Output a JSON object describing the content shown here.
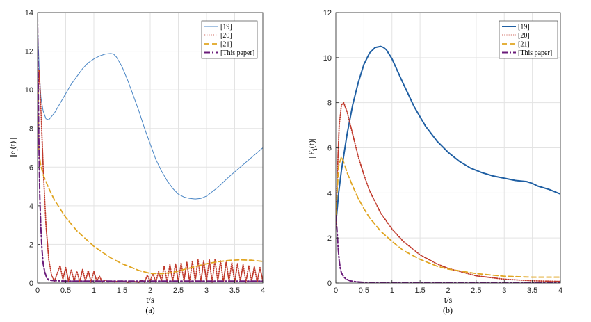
{
  "chart_data": [
    {
      "type": "line",
      "panel": "a",
      "caption": "(a)",
      "xlabel": "t/s",
      "ylabel": "||e_i(t)||",
      "xlim": [
        0,
        4
      ],
      "ylim": [
        0,
        14
      ],
      "xticks": [
        0,
        0.5,
        1,
        1.5,
        2,
        2.5,
        3,
        3.5,
        4
      ],
      "yticks": [
        0,
        2,
        4,
        6,
        8,
        10,
        12,
        14
      ],
      "xtick_labels": [
        "0",
        "0.5",
        "1",
        "1.5",
        "2",
        "2.5",
        "3",
        "3.5",
        "4"
      ],
      "ytick_labels": [
        "0",
        "2",
        "4",
        "6",
        "8",
        "10",
        "12",
        "14"
      ],
      "grid": true,
      "legend_position": "top-right",
      "series": [
        {
          "name": "[19]",
          "color": "#4a86c5",
          "style": "solid",
          "x": [
            0,
            0.03,
            0.06,
            0.1,
            0.15,
            0.2,
            0.3,
            0.4,
            0.5,
            0.6,
            0.7,
            0.8,
            0.9,
            1.0,
            1.1,
            1.2,
            1.3,
            1.35,
            1.4,
            1.5,
            1.6,
            1.7,
            1.8,
            1.9,
            2.0,
            2.1,
            2.2,
            2.3,
            2.4,
            2.5,
            2.6,
            2.7,
            2.8,
            2.9,
            3.0,
            3.2,
            3.4,
            3.6,
            3.8,
            4.0
          ],
          "y": [
            13.5,
            11.0,
            9.6,
            8.9,
            8.5,
            8.45,
            8.8,
            9.3,
            9.8,
            10.3,
            10.7,
            11.1,
            11.4,
            11.6,
            11.75,
            11.85,
            11.88,
            11.85,
            11.7,
            11.2,
            10.5,
            9.7,
            8.9,
            8.0,
            7.2,
            6.4,
            5.8,
            5.3,
            4.9,
            4.6,
            4.45,
            4.38,
            4.35,
            4.38,
            4.5,
            4.95,
            5.5,
            6.0,
            6.5,
            7.0
          ]
        },
        {
          "name": "[20]",
          "color": "#c0392b",
          "style": "dotted",
          "x": [
            0,
            0.03,
            0.06,
            0.1,
            0.15,
            0.2,
            0.25,
            0.3,
            0.35,
            0.4,
            0.45,
            0.5,
            0.55,
            0.6,
            0.65,
            0.7,
            0.75,
            0.8,
            0.85,
            0.9,
            0.95,
            1.0,
            1.05,
            1.1,
            1.15,
            1.2,
            1.25,
            1.3,
            1.35,
            1.4,
            1.5,
            1.6,
            1.7,
            1.8,
            1.85,
            1.9,
            1.95,
            2.0,
            2.05,
            2.1,
            2.15,
            2.2,
            2.25,
            2.3,
            2.35,
            2.4,
            2.45,
            2.5,
            2.55,
            2.6,
            2.65,
            2.7,
            2.75,
            2.8,
            2.85,
            2.9,
            2.95,
            3.0,
            3.05,
            3.1,
            3.15,
            3.2,
            3.25,
            3.3,
            3.35,
            3.4,
            3.45,
            3.5,
            3.55,
            3.6,
            3.65,
            3.7,
            3.75,
            3.8,
            3.85,
            3.9,
            3.95,
            4.0
          ],
          "y": [
            9.5,
            11.0,
            9.0,
            6.0,
            3.0,
            1.2,
            0.4,
            0.1,
            0.5,
            0.9,
            0.2,
            0.8,
            0.1,
            0.7,
            0.1,
            0.6,
            0.05,
            0.7,
            0.1,
            0.65,
            0.05,
            0.6,
            0.1,
            0.35,
            0.05,
            0.15,
            0.05,
            0.1,
            0.05,
            0.08,
            0.1,
            0.05,
            0.08,
            0.05,
            0.15,
            0.05,
            0.4,
            0.1,
            0.5,
            0.05,
            0.6,
            0.1,
            0.9,
            0.05,
            0.95,
            0.1,
            1.0,
            0.05,
            1.05,
            0.1,
            1.1,
            0.05,
            1.15,
            0.1,
            1.2,
            0.05,
            1.15,
            0.1,
            1.2,
            0.05,
            1.2,
            0.1,
            1.15,
            0.05,
            1.1,
            0.1,
            1.05,
            0.05,
            1.0,
            0.1,
            0.95,
            0.05,
            0.9,
            0.1,
            0.85,
            0.05,
            0.8,
            0.1
          ]
        },
        {
          "name": "[21]",
          "color": "#e0a521",
          "style": "dashed",
          "x": [
            0,
            0.02,
            0.05,
            0.1,
            0.2,
            0.3,
            0.5,
            0.7,
            1.0,
            1.3,
            1.5,
            1.8,
            2.0,
            2.2,
            2.4,
            2.6,
            2.8,
            3.0,
            3.2,
            3.4,
            3.6,
            3.8,
            4.0
          ],
          "y": [
            13.5,
            7.0,
            6.2,
            5.6,
            4.9,
            4.3,
            3.4,
            2.7,
            1.9,
            1.3,
            1.0,
            0.65,
            0.5,
            0.48,
            0.55,
            0.7,
            0.85,
            1.0,
            1.1,
            1.17,
            1.2,
            1.18,
            1.12
          ]
        },
        {
          "name": "[This paper]",
          "color": "#6a1b7a",
          "style": "dashdot",
          "x": [
            0,
            0.02,
            0.04,
            0.06,
            0.08,
            0.1,
            0.13,
            0.16,
            0.2,
            0.3,
            0.5,
            1.0,
            2.0,
            3.0,
            4.0
          ],
          "y": [
            13.8,
            8.0,
            4.5,
            2.8,
            1.7,
            1.0,
            0.55,
            0.3,
            0.15,
            0.12,
            0.1,
            0.1,
            0.1,
            0.1,
            0.1
          ]
        }
      ]
    },
    {
      "type": "line",
      "panel": "b",
      "caption": "(b)",
      "xlabel": "t/s",
      "ylabel": "||E_i(t)||",
      "xlim": [
        0,
        4
      ],
      "ylim": [
        0,
        12
      ],
      "xticks": [
        0,
        0.5,
        1,
        1.5,
        2,
        2.5,
        3,
        3.5,
        4
      ],
      "yticks": [
        0,
        2,
        4,
        6,
        8,
        10,
        12
      ],
      "xtick_labels": [
        "0",
        "0.5",
        "1",
        "1.5",
        "2",
        "2.5",
        "3",
        "3.5",
        "4"
      ],
      "ytick_labels": [
        "0",
        "2",
        "4",
        "6",
        "8",
        "10",
        "12"
      ],
      "grid": true,
      "legend_position": "top-right",
      "series": [
        {
          "name": "[19]",
          "color": "#1f5fa3",
          "style": "solid-thick",
          "x": [
            0,
            0.05,
            0.1,
            0.2,
            0.3,
            0.4,
            0.5,
            0.6,
            0.7,
            0.8,
            0.85,
            0.9,
            1.0,
            1.1,
            1.2,
            1.4,
            1.6,
            1.8,
            2.0,
            2.2,
            2.4,
            2.6,
            2.8,
            3.0,
            3.2,
            3.4,
            3.5,
            3.6,
            3.8,
            4.0
          ],
          "y": [
            2.6,
            4.0,
            5.0,
            6.6,
            7.9,
            8.9,
            9.7,
            10.2,
            10.45,
            10.5,
            10.45,
            10.35,
            9.95,
            9.4,
            8.85,
            7.8,
            6.95,
            6.3,
            5.8,
            5.4,
            5.1,
            4.9,
            4.75,
            4.65,
            4.55,
            4.5,
            4.42,
            4.3,
            4.15,
            3.95
          ]
        },
        {
          "name": "[20]",
          "color": "#c0392b",
          "style": "dotted",
          "x": [
            0,
            0.03,
            0.06,
            0.1,
            0.14,
            0.2,
            0.3,
            0.4,
            0.5,
            0.6,
            0.8,
            1.0,
            1.2,
            1.5,
            1.8,
            2.0,
            2.5,
            3.0,
            3.5,
            4.0
          ],
          "y": [
            2.5,
            5.0,
            7.0,
            7.9,
            8.0,
            7.6,
            6.6,
            5.6,
            4.8,
            4.1,
            3.1,
            2.4,
            1.85,
            1.25,
            0.85,
            0.65,
            0.32,
            0.17,
            0.1,
            0.07
          ]
        },
        {
          "name": "[21]",
          "color": "#e0a521",
          "style": "dashed",
          "x": [
            0,
            0.05,
            0.1,
            0.15,
            0.2,
            0.3,
            0.4,
            0.5,
            0.6,
            0.8,
            1.0,
            1.2,
            1.5,
            1.8,
            2.0,
            2.5,
            3.0,
            3.5,
            4.0
          ],
          "y": [
            3.0,
            5.2,
            5.6,
            5.3,
            4.9,
            4.3,
            3.75,
            3.3,
            2.9,
            2.3,
            1.85,
            1.45,
            1.05,
            0.75,
            0.62,
            0.42,
            0.3,
            0.26,
            0.26
          ]
        },
        {
          "name": "[This paper]",
          "color": "#6a1b7a",
          "style": "dashdot",
          "x": [
            0,
            0.02,
            0.04,
            0.06,
            0.08,
            0.1,
            0.14,
            0.18,
            0.25,
            0.35,
            0.5,
            0.7,
            1.0,
            2.0,
            3.0,
            4.0
          ],
          "y": [
            3.0,
            2.4,
            1.6,
            1.0,
            0.65,
            0.45,
            0.28,
            0.18,
            0.1,
            0.06,
            0.03,
            0.02,
            0.01,
            0.01,
            0.01,
            0.01
          ]
        }
      ]
    }
  ]
}
